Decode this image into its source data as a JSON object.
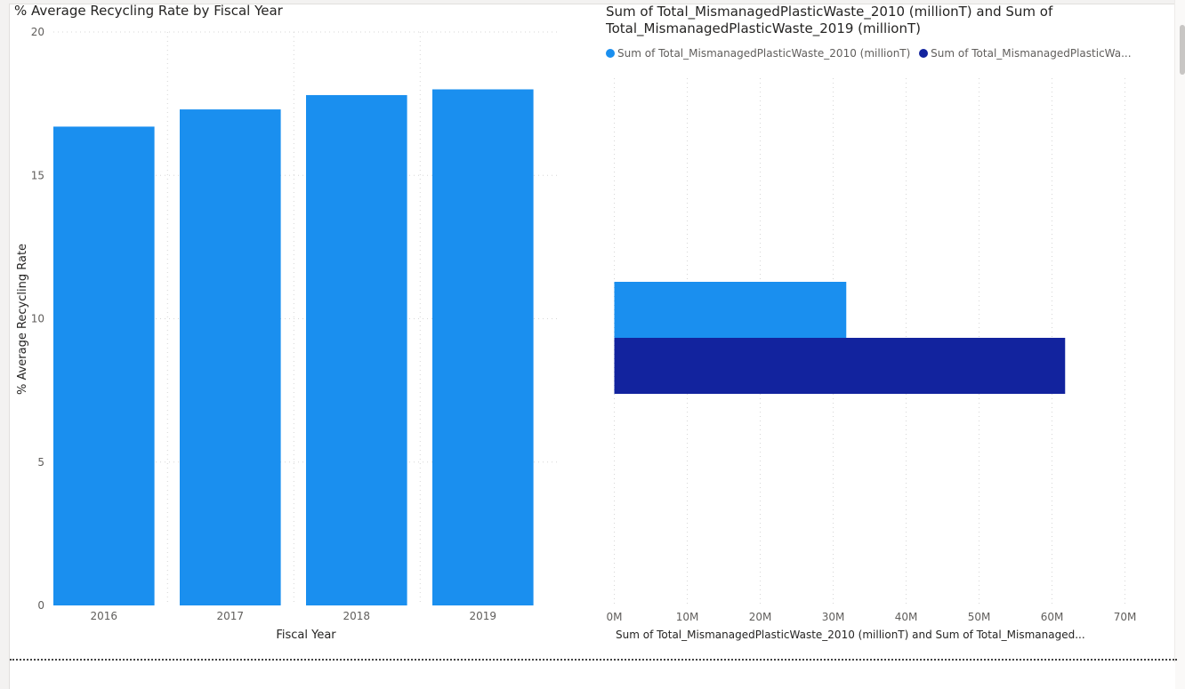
{
  "colors": {
    "series_2010": "#1a8fef",
    "series_2019": "#12239e",
    "bar_left": "#1a8fef",
    "gridline": "#d6d6d6",
    "axis_text": "#605e5c"
  },
  "left_chart": {
    "title": "% Average Recycling Rate by Fiscal Year"
  },
  "right_chart": {
    "title": "Sum of Total_MismanagedPlasticWaste_2010 (millionT) and Sum of Total_MismanagedPlasticWaste_2019 (millionT)"
  },
  "chart_data": [
    {
      "type": "bar",
      "orientation": "vertical",
      "title": "% Average Recycling Rate by Fiscal Year",
      "categories": [
        "2016",
        "2017",
        "2018",
        "2019"
      ],
      "values": [
        16.7,
        17.3,
        17.8,
        18.0
      ],
      "xlabel": "Fiscal Year",
      "ylabel": "% Average Recycling Rate",
      "ylim": [
        0,
        20
      ],
      "yticks": [
        0,
        5,
        10,
        15,
        20
      ],
      "grid": true
    },
    {
      "type": "bar",
      "orientation": "horizontal",
      "title": "Sum of Total_MismanagedPlasticWaste_2010 (millionT) and Sum of Total_MismanagedPlasticWaste_2019 (millionT)",
      "series": [
        {
          "name": "Sum of Total_MismanagedPlasticWaste_2010 (millionT)",
          "legend_label": "Sum of Total_MismanagedPlasticWaste_2010 (millionT)",
          "values": [
            31800000
          ]
        },
        {
          "name": "Sum of Total_MismanagedPlasticWaste_2019 (millionT)",
          "legend_label": "Sum of Total_MismanagedPlasticWa...",
          "values": [
            61800000
          ]
        }
      ],
      "xlim": [
        0,
        70000000
      ],
      "xticks": [
        0,
        10000000,
        20000000,
        30000000,
        40000000,
        50000000,
        60000000,
        70000000
      ],
      "xtick_labels": [
        "0M",
        "10M",
        "20M",
        "30M",
        "40M",
        "50M",
        "60M",
        "70M"
      ],
      "xlabel": "Sum of Total_MismanagedPlasticWaste_2010 (millionT) and Sum of Total_Mismanaged...",
      "legend_position": "top-left",
      "grid": true
    }
  ]
}
